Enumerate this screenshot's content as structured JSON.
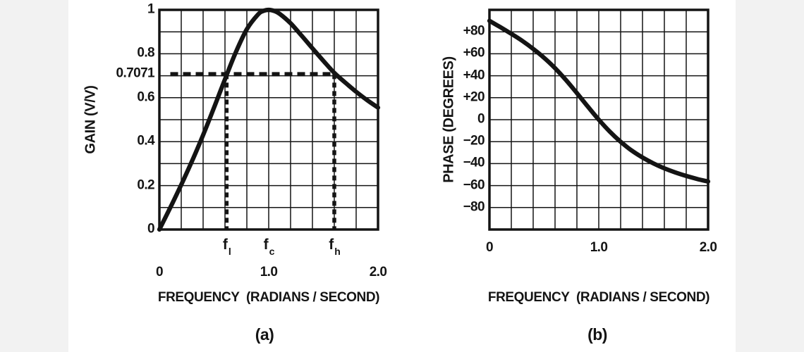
{
  "page": {
    "ink_color": "#141414",
    "paper_color": "#ffffff",
    "margin_color": "#f2f2f2"
  },
  "chart_data": [
    {
      "id": "gain-response",
      "type": "line",
      "title": "",
      "xlabel": "FREQUENCY  (RADIANS / SECOND)",
      "ylabel": "GAIN (V/V)",
      "caption": "(a)",
      "xlim": [
        0,
        2.0
      ],
      "ylim": [
        0,
        1.0
      ],
      "x_grid_step": 0.2,
      "y_grid_step": 0.1,
      "grid": true,
      "legend": "none",
      "x_ticks": [
        {
          "v": 0,
          "label": "0"
        },
        {
          "v": 1.0,
          "label": "1.0"
        },
        {
          "v": 2.0,
          "label": "2.0"
        }
      ],
      "y_ticks": [
        {
          "v": 1,
          "label": "1"
        },
        {
          "v": 0.8,
          "label": "0.8"
        },
        {
          "v": 0.7071,
          "label": "0.7071"
        },
        {
          "v": 0.6,
          "label": "0.6"
        },
        {
          "v": 0.4,
          "label": "0.4"
        },
        {
          "v": 0.2,
          "label": "0.2"
        },
        {
          "v": 0,
          "label": "0"
        }
      ],
      "series": [
        {
          "name": "gain",
          "x": [
            0,
            0.1,
            0.2,
            0.3,
            0.4,
            0.5,
            0.6,
            0.7,
            0.8,
            0.9,
            0.95,
            1.0,
            1.05,
            1.1,
            1.2,
            1.3,
            1.4,
            1.5,
            1.6,
            1.7,
            1.8,
            1.9,
            2.0
          ],
          "y": [
            0,
            0.1,
            0.204,
            0.313,
            0.43,
            0.555,
            0.684,
            0.808,
            0.912,
            0.978,
            0.995,
            1.0,
            0.995,
            0.982,
            0.939,
            0.883,
            0.825,
            0.768,
            0.713,
            0.669,
            0.627,
            0.589,
            0.555
          ]
        }
      ],
      "annotations": {
        "half_power_line": {
          "y": 0.7071,
          "x_start": 0.1,
          "x_end": 1.6
        },
        "cutoff_lines": [
          {
            "x": 0.615
          },
          {
            "x": 1.6
          }
        ],
        "freq_markers": [
          {
            "base": "f",
            "sub": "l",
            "x": 0.615
          },
          {
            "base": "f",
            "sub": "c",
            "x": 1.0
          },
          {
            "base": "f",
            "sub": "h",
            "x": 1.6
          }
        ]
      }
    },
    {
      "id": "phase-response",
      "type": "line",
      "title": "",
      "xlabel": "FREQUENCY  (RADIANS / SECOND)",
      "ylabel": "PHASE (DEGREES)",
      "caption": "(b)",
      "xlim": [
        0,
        2.0
      ],
      "ylim": [
        -100,
        100
      ],
      "x_grid_step": 0.2,
      "y_grid_step": 20,
      "grid": true,
      "legend": "none",
      "x_ticks": [
        {
          "v": 0,
          "label": "0"
        },
        {
          "v": 1.0,
          "label": "1.0"
        },
        {
          "v": 2.0,
          "label": "2.0"
        }
      ],
      "y_ticks": [
        {
          "v": 80,
          "label": "+80"
        },
        {
          "v": 60,
          "label": "+60"
        },
        {
          "v": 40,
          "label": "+40"
        },
        {
          "v": 20,
          "label": "+20"
        },
        {
          "v": 0,
          "label": "0"
        },
        {
          "v": -20,
          "label": "−20"
        },
        {
          "v": -40,
          "label": "−40"
        },
        {
          "v": -60,
          "label": "−60"
        },
        {
          "v": -80,
          "label": "−80"
        }
      ],
      "series": [
        {
          "name": "phase",
          "x": [
            0,
            0.1,
            0.2,
            0.3,
            0.4,
            0.5,
            0.6,
            0.7,
            0.8,
            0.9,
            1.0,
            1.1,
            1.2,
            1.3,
            1.4,
            1.5,
            1.6,
            1.7,
            1.8,
            1.9,
            2.0
          ],
          "y": [
            90,
            84.2,
            78.2,
            71.8,
            64.5,
            56.3,
            46.9,
            36.1,
            24.2,
            11.9,
            0,
            -10.8,
            -20.1,
            -28.0,
            -34.4,
            -39.8,
            -44.3,
            -48.0,
            -51.2,
            -54.0,
            -56.3
          ]
        }
      ],
      "annotations": {}
    }
  ]
}
